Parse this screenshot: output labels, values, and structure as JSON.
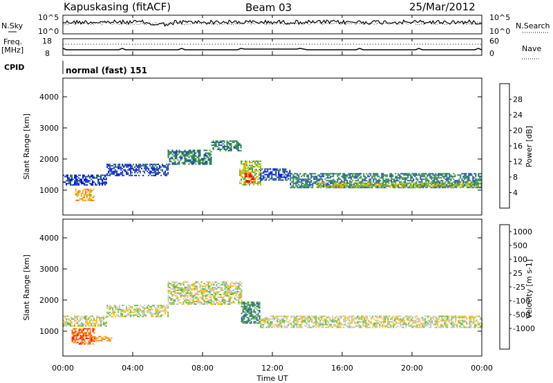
{
  "header": {
    "station": "Kapuskasing (fitACF)",
    "beam": "Beam 03",
    "date": "25/Mar/2012"
  },
  "noise_panel": {
    "left_label": "N.Sky",
    "right_label": "N.Search",
    "left_ticks": [
      "10^5",
      "10^0"
    ],
    "right_ticks": [
      "10^5",
      "10^0"
    ]
  },
  "freq_panel": {
    "left_label_1": "Freq.",
    "left_label_2": "[MHz]",
    "right_label": "Nave",
    "left_ticks": [
      "18",
      "8"
    ],
    "right_ticks": [
      "60",
      "0"
    ]
  },
  "cpid": {
    "label": "CPID",
    "value": "normal (fast) 151"
  },
  "time_axis": {
    "label": "Time UT",
    "ticks": [
      "00:00",
      "04:00",
      "08:00",
      "12:00",
      "16:00",
      "20:00",
      "00:00"
    ]
  },
  "colors": {
    "power": [
      "#0000ff",
      "#1f3fc0",
      "#2a7a5a",
      "#3a9e3a",
      "#a8c820",
      "#ffa500",
      "#ff6000",
      "#e00000"
    ],
    "velocity": [
      "#ff0000",
      "#ff6000",
      "#ff9a00",
      "#ffc000",
      "#c8c8c0",
      "#60c040",
      "#2a7a5a",
      "#2050a0",
      "#0000c0"
    ]
  },
  "chart_data": [
    {
      "type": "heatmap",
      "name": "power",
      "ylabel": "Slant Range [km]",
      "ylim": [
        200,
        4600
      ],
      "yticks": [
        1000,
        2000,
        3000,
        4000
      ],
      "xlim_hours": [
        0,
        24
      ],
      "colorbar": {
        "label": "Power [dB]",
        "ticks": [
          "4",
          "8",
          "12",
          "16",
          "20",
          "24",
          "28"
        ],
        "range": [
          0,
          32
        ]
      },
      "regions": [
        {
          "t0": 0.0,
          "t1": 2.5,
          "r0": 1150,
          "r1": 1500,
          "level": 1
        },
        {
          "t0": 2.5,
          "t1": 6.0,
          "r0": 1450,
          "r1": 1850,
          "level": 1
        },
        {
          "t0": 6.0,
          "t1": 8.5,
          "r0": 1850,
          "r1": 2300,
          "level": 2
        },
        {
          "t0": 8.5,
          "t1": 10.2,
          "r0": 2250,
          "r1": 2600,
          "level": 2
        },
        {
          "t0": 0.7,
          "t1": 1.8,
          "r0": 650,
          "r1": 1050,
          "level": 5
        },
        {
          "t0": 10.1,
          "t1": 11.3,
          "r0": 1150,
          "r1": 1950,
          "level": 4
        },
        {
          "t0": 10.4,
          "t1": 10.9,
          "r0": 1250,
          "r1": 1550,
          "level": 7
        },
        {
          "t0": 11.3,
          "t1": 13.0,
          "r0": 1300,
          "r1": 1700,
          "level": 1
        },
        {
          "t0": 13.0,
          "t1": 24.0,
          "r0": 1100,
          "r1": 1550,
          "level": 2
        },
        {
          "t0": 14.5,
          "t1": 24.0,
          "r0": 1100,
          "r1": 1250,
          "level": 4
        }
      ]
    },
    {
      "type": "heatmap",
      "name": "velocity",
      "ylabel": "Slant Range [km]",
      "ylim": [
        200,
        4600
      ],
      "yticks": [
        1000,
        2000,
        3000,
        4000
      ],
      "xlim_hours": [
        0,
        24
      ],
      "colorbar": {
        "label": "Velocity [m s-1]",
        "ticks": [
          "1000",
          "500",
          "100",
          "25",
          "-25",
          "-100",
          "-500",
          "-1000"
        ]
      },
      "regions": [
        {
          "t0": 0.0,
          "t1": 2.5,
          "r0": 1150,
          "r1": 1500,
          "level": 4
        },
        {
          "t0": 2.5,
          "t1": 6.0,
          "r0": 1450,
          "r1": 1850,
          "level": 4
        },
        {
          "t0": 6.0,
          "t1": 10.2,
          "r0": 1850,
          "r1": 2600,
          "level": 4
        },
        {
          "t0": 0.5,
          "t1": 1.8,
          "r0": 600,
          "r1": 1100,
          "level": 1
        },
        {
          "t0": 1.8,
          "t1": 2.8,
          "r0": 700,
          "r1": 850,
          "level": 2
        },
        {
          "t0": 10.2,
          "t1": 11.3,
          "r0": 1250,
          "r1": 1950,
          "level": 6
        },
        {
          "t0": 11.3,
          "t1": 24.0,
          "r0": 1100,
          "r1": 1500,
          "level": 4
        }
      ]
    }
  ]
}
